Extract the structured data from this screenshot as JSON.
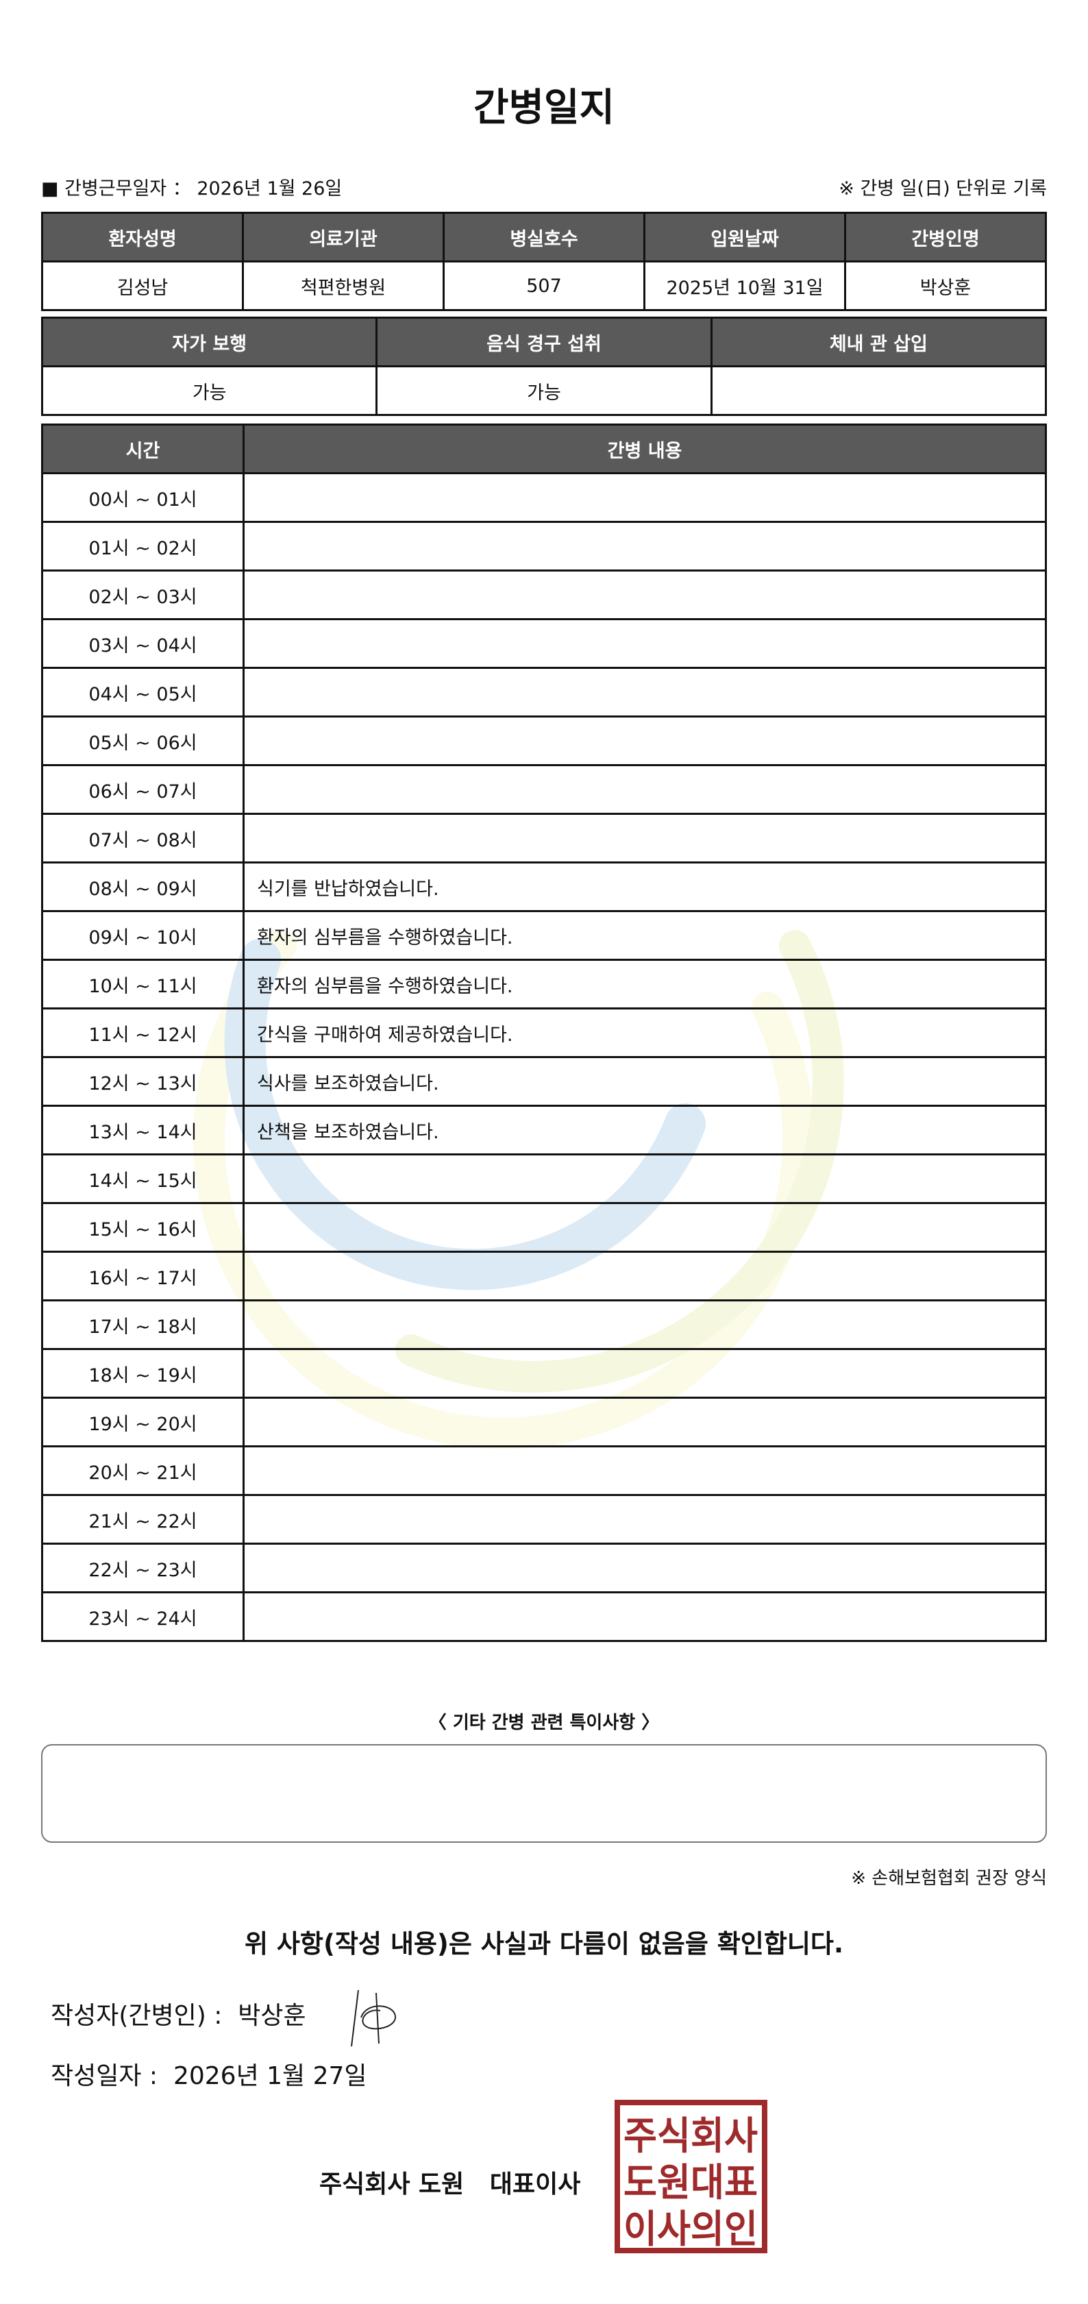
{
  "title": "간병일지",
  "meta": {
    "work_date_label": "■ 간병근무일자 ：",
    "work_date": "2026년 1월 26일",
    "note": "※ 간병 일(日) 단위로 기록"
  },
  "patient_table": {
    "headers": [
      "환자성명",
      "의료기관",
      "병실호수",
      "입원날짜",
      "간병인명"
    ],
    "values": [
      "김성남",
      "척편한병원",
      "507",
      "2025년 10월 31일",
      "박상훈"
    ]
  },
  "status_table": {
    "headers": [
      "자가 보행",
      "음식 경구 섭취",
      "체내 관 삽입"
    ],
    "values": [
      "가능",
      "가능",
      ""
    ]
  },
  "log_table": {
    "headers": [
      "시간",
      "간병 내용"
    ],
    "rows": [
      {
        "time": "00시 ~ 01시",
        "content": ""
      },
      {
        "time": "01시 ~ 02시",
        "content": ""
      },
      {
        "time": "02시 ~ 03시",
        "content": ""
      },
      {
        "time": "03시 ~ 04시",
        "content": ""
      },
      {
        "time": "04시 ~ 05시",
        "content": ""
      },
      {
        "time": "05시 ~ 06시",
        "content": ""
      },
      {
        "time": "06시 ~ 07시",
        "content": ""
      },
      {
        "time": "07시 ~ 08시",
        "content": ""
      },
      {
        "time": "08시 ~ 09시",
        "content": "식기를 반납하였습니다."
      },
      {
        "time": "09시 ~ 10시",
        "content": "환자의 심부름을 수행하였습니다."
      },
      {
        "time": "10시 ~ 11시",
        "content": "환자의 심부름을 수행하였습니다."
      },
      {
        "time": "11시 ~ 12시",
        "content": "간식을 구매하여 제공하였습니다."
      },
      {
        "time": "12시 ~ 13시",
        "content": "식사를 보조하였습니다."
      },
      {
        "time": "13시 ~ 14시",
        "content": "산책을 보조하였습니다."
      },
      {
        "time": "14시 ~ 15시",
        "content": ""
      },
      {
        "time": "15시 ~ 16시",
        "content": ""
      },
      {
        "time": "16시 ~ 17시",
        "content": ""
      },
      {
        "time": "17시 ~ 18시",
        "content": ""
      },
      {
        "time": "18시 ~ 19시",
        "content": ""
      },
      {
        "time": "19시 ~ 20시",
        "content": ""
      },
      {
        "time": "20시 ~ 21시",
        "content": ""
      },
      {
        "time": "21시 ~ 22시",
        "content": ""
      },
      {
        "time": "22시 ~ 23시",
        "content": ""
      },
      {
        "time": "23시 ~ 24시",
        "content": ""
      }
    ]
  },
  "special": {
    "label": "〈 기타 간병 관련 특이사항 〉",
    "text": ""
  },
  "form_note": "※ 손해보험협회 권장 양식",
  "confirmation": "위 사항(작성 내용)은 사실과 다름이 없음을 확인합니다.",
  "writer": {
    "label": "작성자(간병인) :",
    "name": "박상훈"
  },
  "written_date": {
    "label": "작성일자 :",
    "value": "2026년 1월 27일"
  },
  "company": {
    "name": "주식회사 도원",
    "title": "대표이사"
  },
  "stamp": {
    "text": [
      "주식회사",
      "도원대표",
      "이사의인"
    ],
    "color": "#9e2a2b"
  },
  "colors": {
    "header_bg": "#5a5a5a",
    "watermark_blue": "#d6e8f4",
    "watermark_yellow": "#f4f6dc"
  }
}
